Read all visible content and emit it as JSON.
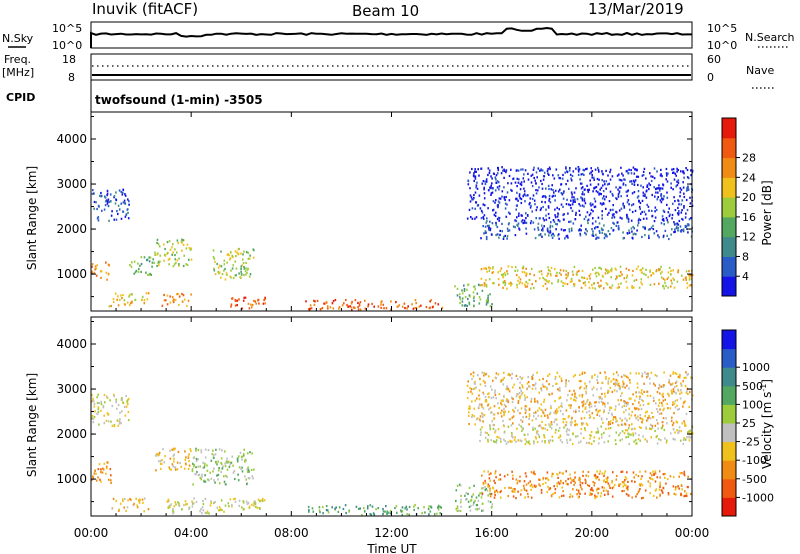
{
  "header": {
    "station": "Inuvik (fitACF)",
    "beam": "Beam 10",
    "date": "13/Mar/2019"
  },
  "top_panels": {
    "nsky_label": "N.Sky",
    "nsearch_label": "N.Search",
    "nsky_ticks": [
      "10^5",
      "10^0"
    ],
    "nsearch_ticks": [
      "10^5",
      "10^0"
    ],
    "freq_label": "Freq.",
    "freq_unit": "[MHz]",
    "freq_ticks": [
      "18",
      "8"
    ],
    "nave_label": "Nave",
    "nave_ticks": [
      "60",
      "0"
    ],
    "cpid_label": "CPID",
    "cpid_value": "twofsound (1-min) -3505"
  },
  "chart_data": [
    {
      "type": "heatmap",
      "name": "power",
      "ylabel": "Slant Range [km]",
      "yticks": [
        "1000",
        "2000",
        "3000",
        "4000"
      ],
      "ylim": [
        180,
        4600
      ],
      "colorbar_label": "Power [dB]",
      "colorbar_ticks": [
        "4",
        "8",
        "12",
        "16",
        "20",
        "24",
        "28"
      ],
      "colors": [
        "#1414e6",
        "#2a5cc8",
        "#3f8a8a",
        "#52a860",
        "#9ccc3c",
        "#f0c01c",
        "#f08c14",
        "#f05a10",
        "#e61a0a"
      ],
      "echo_regions": [
        {
          "t": [
            0.0,
            0.7
          ],
          "r": [
            900,
            1300
          ],
          "level": 6
        },
        {
          "t": [
            0.7,
            2.3
          ],
          "r": [
            300,
            600
          ],
          "level": 5
        },
        {
          "t": [
            1.5,
            2.5
          ],
          "r": [
            1000,
            1400
          ],
          "level": 3
        },
        {
          "t": [
            2.5,
            4.0
          ],
          "r": [
            1200,
            1800
          ],
          "level": 4
        },
        {
          "t": [
            2.8,
            4.0
          ],
          "r": [
            300,
            600
          ],
          "level": 6
        },
        {
          "t": [
            4.8,
            6.5
          ],
          "r": [
            900,
            1600
          ],
          "level": 4
        },
        {
          "t": [
            5.3,
            7.0
          ],
          "r": [
            250,
            500
          ],
          "level": 7
        },
        {
          "t": [
            8.5,
            14.0
          ],
          "r": [
            220,
            450
          ],
          "level": 7
        },
        {
          "t": [
            14.5,
            16.0
          ],
          "r": [
            300,
            800
          ],
          "level": 3
        },
        {
          "t": [
            15.5,
            24.0
          ],
          "r": [
            700,
            1200
          ],
          "level": 5
        },
        {
          "t": [
            15.5,
            24.0
          ],
          "r": [
            1800,
            2200
          ],
          "level": 1
        },
        {
          "t": [
            15.0,
            24.0
          ],
          "r": [
            2200,
            3400
          ],
          "level": 0
        },
        {
          "t": [
            0.0,
            1.5
          ],
          "r": [
            2200,
            2900
          ],
          "level": 1
        }
      ]
    },
    {
      "type": "heatmap",
      "name": "velocity",
      "ylabel": "Slant Range [km]",
      "yticks": [
        "1000",
        "2000",
        "3000",
        "4000"
      ],
      "ylim": [
        180,
        4600
      ],
      "colorbar_label": "Velocity [m s",
      "colorbar_label_sup": "-1",
      "colorbar_label_end": "]",
      "colorbar_ticks": [
        "-1000",
        "-500",
        "-100",
        "-25",
        "25",
        "100",
        "500",
        "1000"
      ],
      "colors": [
        "#e61a0a",
        "#f05a10",
        "#f08c14",
        "#f0c01c",
        "#c0c0c0",
        "#9ccc3c",
        "#52a860",
        "#3f8a8a",
        "#2a5cc8",
        "#1414e6"
      ],
      "echo_regions": [
        {
          "t": [
            0.0,
            0.8
          ],
          "r": [
            900,
            1400
          ],
          "level": 2
        },
        {
          "t": [
            0.8,
            2.3
          ],
          "r": [
            300,
            600
          ],
          "level": 3
        },
        {
          "t": [
            2.5,
            4.0
          ],
          "r": [
            1200,
            1700
          ],
          "level": 3
        },
        {
          "t": [
            4.0,
            6.5
          ],
          "r": [
            900,
            1700
          ],
          "level": 5
        },
        {
          "t": [
            3.0,
            7.0
          ],
          "r": [
            250,
            600
          ],
          "level": 4
        },
        {
          "t": [
            8.5,
            14.0
          ],
          "r": [
            220,
            450
          ],
          "level": 6
        },
        {
          "t": [
            14.5,
            16.0
          ],
          "r": [
            300,
            900
          ],
          "level": 5
        },
        {
          "t": [
            15.5,
            24.0
          ],
          "r": [
            600,
            1200
          ],
          "level": 2
        },
        {
          "t": [
            15.5,
            24.0
          ],
          "r": [
            1800,
            2200
          ],
          "level": 4
        },
        {
          "t": [
            15.0,
            24.0
          ],
          "r": [
            2200,
            3400
          ],
          "level": 3
        },
        {
          "t": [
            0.0,
            1.5
          ],
          "r": [
            2200,
            2900
          ],
          "level": 4
        }
      ]
    }
  ],
  "x_axis": {
    "ticks": [
      "00:00",
      "04:00",
      "08:00",
      "12:00",
      "16:00",
      "20:00",
      "00:00"
    ],
    "xlabel": "Time UT",
    "xlim_hours": [
      0,
      24
    ]
  }
}
